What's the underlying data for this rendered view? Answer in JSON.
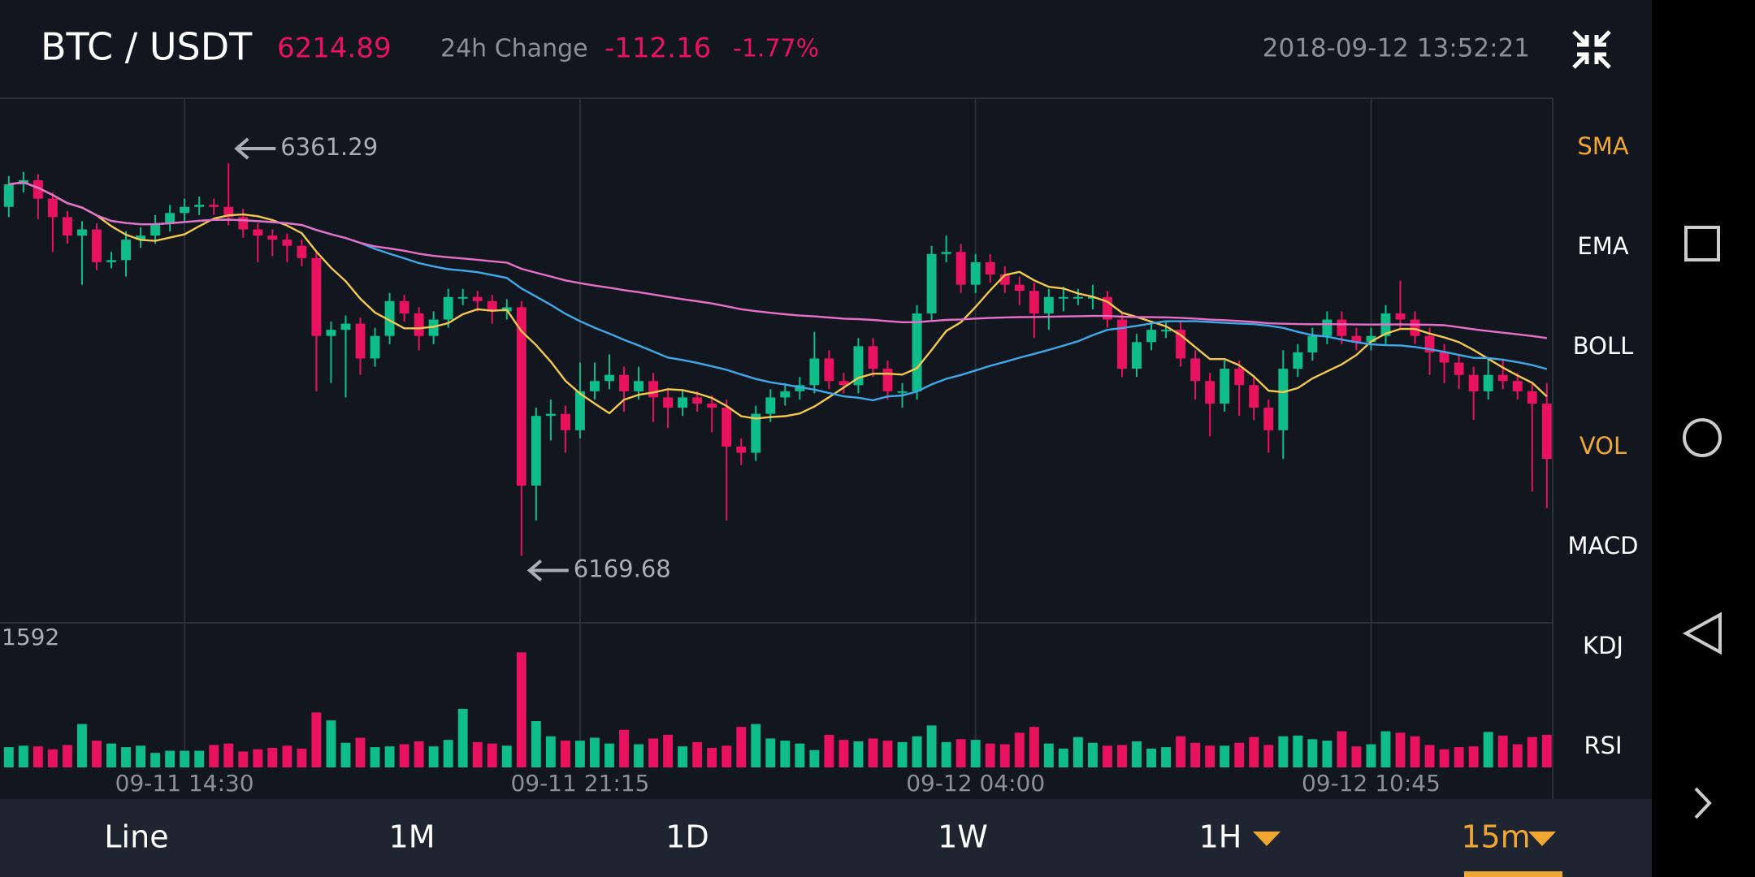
{
  "header": {
    "pair": "BTC / USDT",
    "price": 6214.89,
    "change_label": "24h Change",
    "change": -112.16,
    "change_pct": "-1.77%",
    "time": "2018-09-12 13:52:21"
  },
  "indicators": [
    {
      "label": "SMA",
      "active": true
    },
    {
      "label": "EMA"
    },
    {
      "label": "BOLL"
    },
    {
      "label": "VOL",
      "active": true
    },
    {
      "label": "MACD"
    },
    {
      "label": "KDJ"
    },
    {
      "label": "RSI"
    }
  ],
  "tabs": [
    {
      "label": "Line"
    },
    {
      "label": "1M"
    },
    {
      "label": "1D"
    },
    {
      "label": "1W"
    },
    {
      "label": "1H",
      "dropdown": true
    },
    {
      "label": "15m",
      "dropdown": true,
      "active": true
    }
  ],
  "chart_data": {
    "type": "candlestick",
    "up_color": "#0ebd8a",
    "down_color": "#e8125f",
    "grid": true,
    "xlim": [
      -0.6,
      105.4
    ],
    "ylim": [
      6137,
      6393
    ],
    "volume_ylim": [
      0,
      2000
    ],
    "xticks": [
      {
        "value": 12,
        "label": "09-11 14:30"
      },
      {
        "value": 39,
        "label": "09-11 21:15"
      },
      {
        "value": 66,
        "label": "09-12 04:00"
      },
      {
        "value": 93,
        "label": "09-12 10:45"
      }
    ],
    "high_label": 6361.29,
    "low_label": 6169.68,
    "volume_label": 1592,
    "overlays": [
      {
        "period": 7,
        "color": "#f2c94c"
      },
      {
        "period": 25,
        "color": "#3fa9e8"
      },
      {
        "period": 99,
        "color": "#e86fc8"
      }
    ],
    "candles": [
      [
        6340,
        6355,
        6335,
        6351
      ],
      [
        6351,
        6357,
        6347,
        6353
      ],
      [
        6353,
        6356,
        6334,
        6344
      ],
      [
        6344,
        6347,
        6318,
        6335
      ],
      [
        6335,
        6338,
        6322,
        6326
      ],
      [
        6326,
        6333,
        6302,
        6329
      ],
      [
        6329,
        6332,
        6309,
        6313
      ],
      [
        6313,
        6318,
        6310,
        6314
      ],
      [
        6314,
        6328,
        6306,
        6324
      ],
      [
        6324,
        6330,
        6320,
        6326
      ],
      [
        6326,
        6336,
        6322,
        6332
      ],
      [
        6332,
        6341,
        6328,
        6337
      ],
      [
        6337,
        6344,
        6333,
        6340
      ],
      [
        6340,
        6345,
        6336,
        6341
      ],
      [
        6341,
        6344,
        6336,
        6340
      ],
      [
        6340,
        6361.29,
        6331,
        6335
      ],
      [
        6335,
        6339,
        6325,
        6329
      ],
      [
        6329,
        6332,
        6313,
        6326
      ],
      [
        6326,
        6329,
        6316,
        6324
      ],
      [
        6324,
        6327,
        6313,
        6321
      ],
      [
        6321,
        6324,
        6311,
        6315
      ],
      [
        6315,
        6318,
        6250,
        6277
      ],
      [
        6277,
        6284,
        6254,
        6280
      ],
      [
        6280,
        6287,
        6247,
        6283
      ],
      [
        6283,
        6286,
        6258,
        6266
      ],
      [
        6266,
        6281,
        6262,
        6277
      ],
      [
        6277,
        6298,
        6273,
        6294
      ],
      [
        6294,
        6297,
        6284,
        6288
      ],
      [
        6288,
        6291,
        6270,
        6277
      ],
      [
        6277,
        6289,
        6273,
        6285
      ],
      [
        6285,
        6300,
        6281,
        6296
      ],
      [
        6296,
        6300,
        6292,
        6296
      ],
      [
        6296,
        6299,
        6289,
        6294
      ],
      [
        6294,
        6297,
        6283,
        6289
      ],
      [
        6289,
        6295,
        6285,
        6291
      ],
      [
        6291,
        6294,
        6169.68,
        6204
      ],
      [
        6204,
        6242,
        6187,
        6238
      ],
      [
        6238,
        6246,
        6226,
        6239
      ],
      [
        6239,
        6243,
        6220,
        6231
      ],
      [
        6231,
        6264,
        6227,
        6250
      ],
      [
        6250,
        6264,
        6246,
        6255
      ],
      [
        6255,
        6268,
        6251,
        6258
      ],
      [
        6258,
        6262,
        6240,
        6250
      ],
      [
        6250,
        6262,
        6246,
        6255
      ],
      [
        6255,
        6259,
        6235,
        6247
      ],
      [
        6247,
        6251,
        6232,
        6242
      ],
      [
        6242,
        6251,
        6238,
        6247
      ],
      [
        6247,
        6250,
        6240,
        6244
      ],
      [
        6244,
        6248,
        6230,
        6242
      ],
      [
        6242,
        6246,
        6187,
        6223
      ],
      [
        6223,
        6227,
        6214,
        6220
      ],
      [
        6220,
        6243,
        6216,
        6239
      ],
      [
        6239,
        6251,
        6235,
        6247
      ],
      [
        6247,
        6254,
        6243,
        6250
      ],
      [
        6250,
        6257,
        6246,
        6253
      ],
      [
        6253,
        6279,
        6249,
        6266
      ],
      [
        6266,
        6270,
        6251,
        6255
      ],
      [
        6255,
        6259,
        6249,
        6253
      ],
      [
        6253,
        6276,
        6249,
        6272
      ],
      [
        6272,
        6276,
        6257,
        6261
      ],
      [
        6261,
        6265,
        6246,
        6250
      ],
      [
        6250,
        6254,
        6242,
        6250
      ],
      [
        6250,
        6292,
        6246,
        6288
      ],
      [
        6288,
        6321,
        6284,
        6317
      ],
      [
        6317,
        6326,
        6313,
        6318
      ],
      [
        6318,
        6322,
        6298,
        6302
      ],
      [
        6302,
        6317,
        6298,
        6313
      ],
      [
        6313,
        6317,
        6303,
        6307
      ],
      [
        6307,
        6311,
        6298,
        6302
      ],
      [
        6302,
        6306,
        6292,
        6299
      ],
      [
        6299,
        6303,
        6276,
        6288
      ],
      [
        6288,
        6300,
        6280,
        6296
      ],
      [
        6296,
        6301,
        6289,
        6296
      ],
      [
        6296,
        6300,
        6292,
        6296
      ],
      [
        6296,
        6302,
        6290,
        6296
      ],
      [
        6296,
        6299,
        6281,
        6285
      ],
      [
        6285,
        6289,
        6257,
        6261
      ],
      [
        6261,
        6278,
        6257,
        6274
      ],
      [
        6274,
        6284,
        6270,
        6280
      ],
      [
        6280,
        6284,
        6276,
        6280
      ],
      [
        6280,
        6284,
        6262,
        6266
      ],
      [
        6266,
        6270,
        6246,
        6255
      ],
      [
        6255,
        6259,
        6228,
        6244
      ],
      [
        6244,
        6265,
        6240,
        6261
      ],
      [
        6261,
        6265,
        6238,
        6253
      ],
      [
        6253,
        6257,
        6236,
        6242
      ],
      [
        6242,
        6246,
        6220,
        6231
      ],
      [
        6231,
        6270,
        6217,
        6261
      ],
      [
        6261,
        6273,
        6257,
        6269
      ],
      [
        6269,
        6281,
        6265,
        6277
      ],
      [
        6277,
        6289,
        6273,
        6285
      ],
      [
        6285,
        6289,
        6273,
        6277
      ],
      [
        6277,
        6281,
        6270,
        6274
      ],
      [
        6274,
        6281,
        6270,
        6277
      ],
      [
        6277,
        6292,
        6273,
        6288
      ],
      [
        6288,
        6304,
        6281,
        6285
      ],
      [
        6285,
        6289,
        6273,
        6277
      ],
      [
        6277,
        6281,
        6258,
        6269
      ],
      [
        6269,
        6273,
        6254,
        6264
      ],
      [
        6264,
        6268,
        6251,
        6258
      ],
      [
        6258,
        6262,
        6236,
        6250
      ],
      [
        6250,
        6266,
        6246,
        6258
      ],
      [
        6258,
        6266,
        6251,
        6255
      ],
      [
        6255,
        6259,
        6246,
        6250
      ],
      [
        6250,
        6254,
        6201,
        6244
      ],
      [
        6244,
        6254,
        6193,
        6217
      ]
    ],
    "volumes": [
      280,
      300,
      290,
      250,
      310,
      600,
      370,
      330,
      280,
      300,
      200,
      230,
      230,
      230,
      310,
      330,
      220,
      250,
      270,
      300,
      260,
      760,
      650,
      340,
      410,
      280,
      290,
      320,
      360,
      290,
      380,
      810,
      350,
      330,
      300,
      1592,
      640,
      430,
      370,
      370,
      410,
      330,
      520,
      320,
      400,
      450,
      290,
      350,
      270,
      300,
      560,
      600,
      400,
      370,
      330,
      240,
      450,
      380,
      360,
      400,
      370,
      350,
      430,
      580,
      350,
      390,
      380,
      330,
      320,
      480,
      560,
      330,
      260,
      420,
      340,
      300,
      310,
      360,
      260,
      280,
      430,
      340,
      300,
      300,
      340,
      420,
      310,
      430,
      440,
      390,
      370,
      500,
      290,
      320,
      500,
      480,
      430,
      310,
      250,
      280,
      290,
      490,
      440,
      320,
      420,
      450
    ]
  }
}
